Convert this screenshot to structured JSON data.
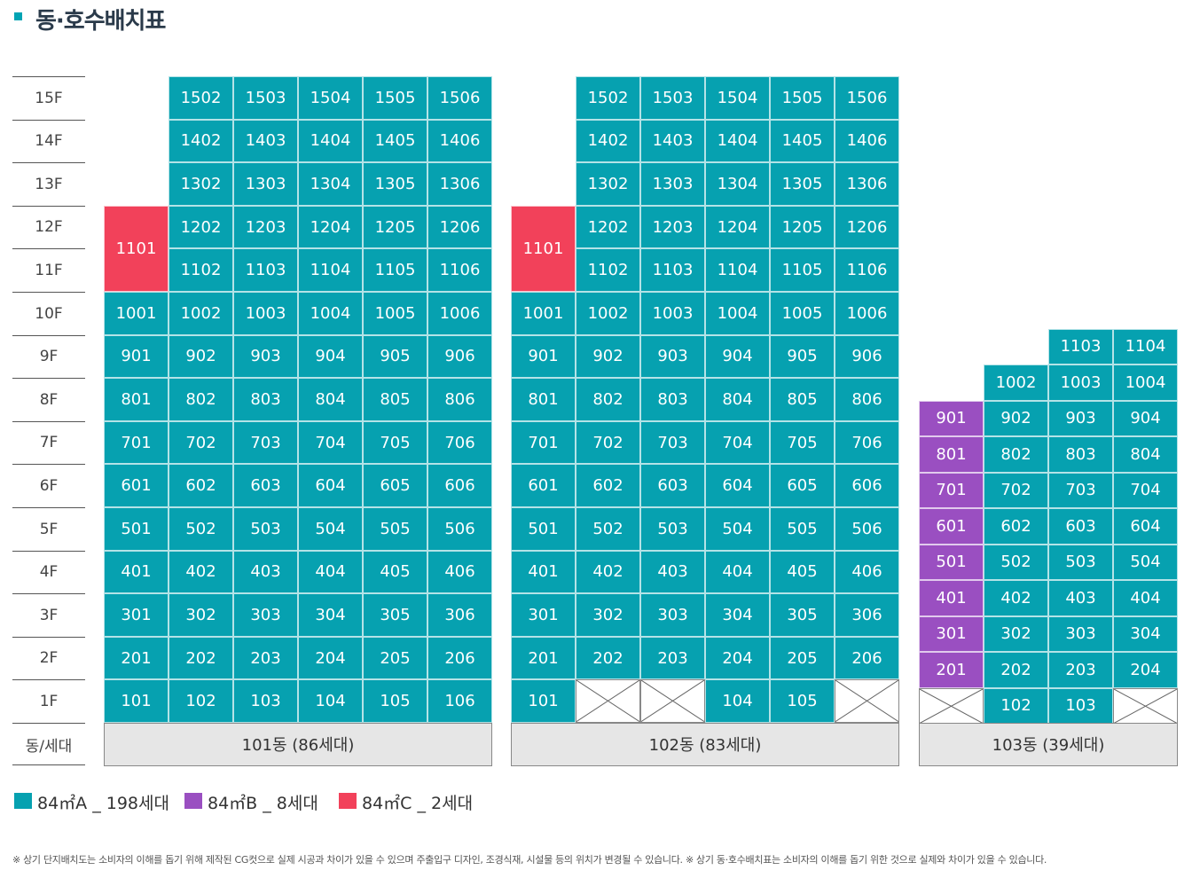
{
  "title": "동·호수배치표",
  "colors": {
    "type_a": "#06a1b0",
    "type_b": "#9a4fc1",
    "type_c": "#f2415a",
    "empty": "#ffffff"
  },
  "floor_axis": {
    "floors": [
      "15F",
      "14F",
      "13F",
      "12F",
      "11F",
      "10F",
      "9F",
      "8F",
      "7F",
      "6F",
      "5F",
      "4F",
      "3F",
      "2F",
      "1F"
    ],
    "bottom_label": "동/세대"
  },
  "buildings": [
    {
      "label": "101동 (86세대)",
      "columns": [
        [
          "1101",
          null,
          null,
          null,
          "1001",
          "901",
          "801",
          "701",
          "601",
          "501",
          "401",
          "301",
          "201",
          "101"
        ],
        [
          "1502",
          "1402",
          "1302",
          "1202",
          "1102",
          "1002",
          "902",
          "802",
          "702",
          "602",
          "502",
          "402",
          "302",
          "202",
          "102"
        ],
        [
          "1503",
          "1403",
          "1303",
          "1203",
          "1103",
          "1003",
          "903",
          "803",
          "703",
          "603",
          "503",
          "403",
          "303",
          "203",
          "103"
        ],
        [
          "1504",
          "1404",
          "1304",
          "1204",
          "1104",
          "1004",
          "904",
          "804",
          "704",
          "604",
          "504",
          "404",
          "304",
          "204",
          "104"
        ],
        [
          "1505",
          "1405",
          "1305",
          "1205",
          "1105",
          "1005",
          "905",
          "805",
          "705",
          "605",
          "505",
          "405",
          "305",
          "205",
          "105"
        ],
        [
          "1506",
          "1406",
          "1306",
          "1206",
          "1106",
          "1006",
          "906",
          "806",
          "706",
          "606",
          "506",
          "406",
          "306",
          "206",
          "106"
        ]
      ]
    },
    {
      "label": "102동 (83세대)",
      "columns": [
        [
          "1101",
          null,
          null,
          null,
          "1001",
          "901",
          "801",
          "701",
          "601",
          "501",
          "401",
          "301",
          "201",
          "101"
        ],
        [
          "1502",
          "1402",
          "1302",
          "1202",
          "1102",
          "1002",
          "902",
          "802",
          "702",
          "602",
          "502",
          "402",
          "302",
          "202",
          "empty"
        ],
        [
          "1503",
          "1403",
          "1303",
          "1203",
          "1103",
          "1003",
          "903",
          "803",
          "703",
          "603",
          "503",
          "403",
          "303",
          "203",
          "empty"
        ],
        [
          "1504",
          "1404",
          "1304",
          "1204",
          "1104",
          "1004",
          "904",
          "804",
          "704",
          "604",
          "504",
          "404",
          "304",
          "204",
          "104"
        ],
        [
          "1505",
          "1405",
          "1305",
          "1205",
          "1105",
          "1005",
          "905",
          "805",
          "705",
          "605",
          "505",
          "405",
          "305",
          "205",
          "105"
        ],
        [
          "1506",
          "1406",
          "1306",
          "1206",
          "1106",
          "1006",
          "906",
          "806",
          "706",
          "606",
          "506",
          "406",
          "306",
          "206",
          "empty"
        ]
      ]
    },
    {
      "label": "103동 (39세대)",
      "columns": [
        [
          "901",
          "801",
          "701",
          "601",
          "501",
          "401",
          "301",
          "201",
          "empty"
        ],
        [
          "1002",
          "902",
          "802",
          "702",
          "602",
          "502",
          "402",
          "302",
          "202",
          "102"
        ],
        [
          "1103",
          "1003",
          "903",
          "803",
          "703",
          "603",
          "503",
          "403",
          "303",
          "203",
          "103"
        ],
        [
          "1104",
          "1004",
          "904",
          "804",
          "704",
          "604",
          "504",
          "404",
          "304",
          "204",
          "empty"
        ]
      ]
    }
  ],
  "legend": [
    {
      "label": "84㎡A _ 198세대",
      "type": "a"
    },
    {
      "label": "84㎡B _ 8세대",
      "type": "b"
    },
    {
      "label": "84㎡C _ 2세대",
      "type": "c"
    }
  ],
  "footnote": "※ 상기 단지배치도는 소비자의 이해를 돕기 위해 제작된 CG컷으로 실제 시공과 차이가 있을 수 있으며 주출입구 디자인, 조경식재, 시설물 등의 위치가 변경될 수 있습니다. ※ 상기 동·호수배치표는 소비자의 이해를 돕기 위한 것으로 실제와 차이가 있을 수 있습니다."
}
